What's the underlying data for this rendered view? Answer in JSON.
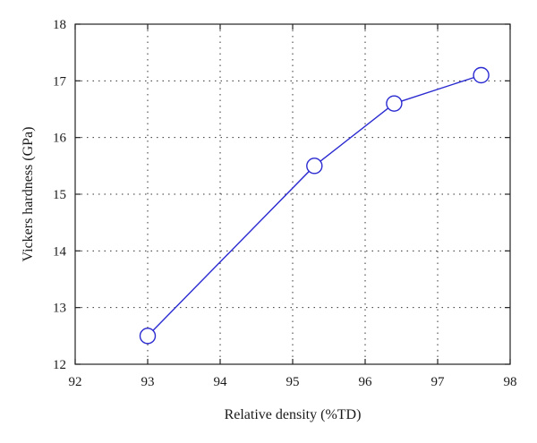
{
  "chart_data": {
    "type": "line",
    "title": "",
    "xlabel": "Relative density (%TD)",
    "ylabel": "Vickers hardness (GPa)",
    "xlim": [
      92,
      98
    ],
    "ylim": [
      12,
      18
    ],
    "xticks": [
      92,
      93,
      94,
      95,
      96,
      97,
      98
    ],
    "yticks": [
      12,
      13,
      14,
      15,
      16,
      17,
      18
    ],
    "grid": true,
    "grid_style": "dotted",
    "series": [
      {
        "color": "#2b2bd1",
        "marker": "open-circle",
        "x": [
          93.0,
          95.3,
          96.4,
          97.6
        ],
        "y": [
          12.5,
          15.5,
          16.6,
          17.1
        ]
      }
    ]
  }
}
